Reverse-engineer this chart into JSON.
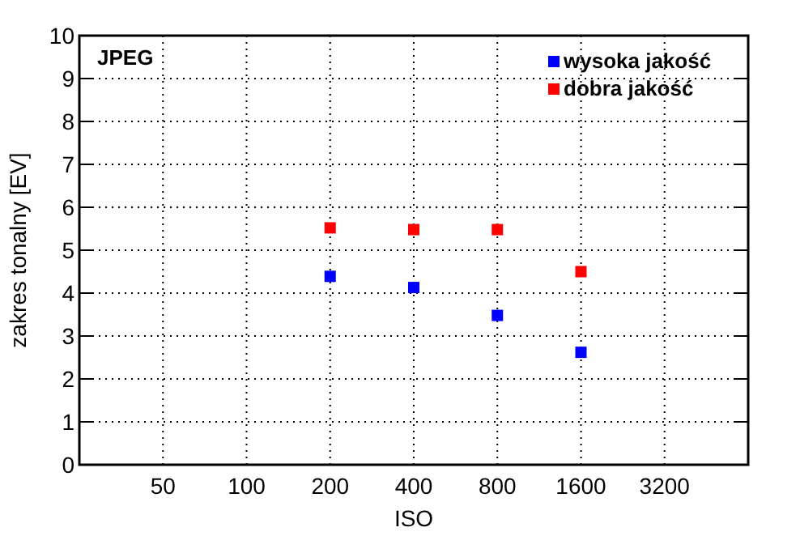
{
  "chart_data": {
    "type": "scatter",
    "title": "JPEG",
    "xlabel": "ISO",
    "ylabel": "zakres tonalny [EV]",
    "log": "x",
    "x": [
      200,
      400,
      800,
      1600
    ],
    "series": [
      {
        "name": "wysoka jakość",
        "color": "#0000ff",
        "values": [
          4.39,
          4.13,
          3.48,
          2.62
        ]
      },
      {
        "name": "dobra jakość",
        "color": "#ff0000",
        "values": [
          5.52,
          5.48,
          5.48,
          4.5
        ]
      }
    ],
    "xlim": [
      25,
      6400
    ],
    "xticks": [
      50,
      100,
      200,
      400,
      800,
      1600,
      3200
    ],
    "ylim": [
      0,
      10
    ],
    "yticks": [
      0,
      1,
      2,
      3,
      4,
      5,
      6,
      7,
      8,
      9,
      10
    ],
    "grid": true,
    "legend": "top right",
    "marker": "square"
  }
}
